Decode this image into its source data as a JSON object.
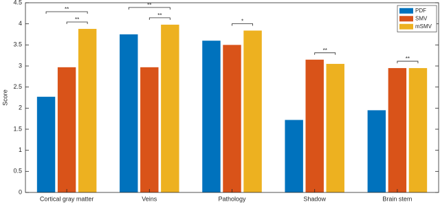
{
  "chart_data": {
    "type": "bar",
    "y_label": "Score",
    "categories": [
      "Cortical gray matter",
      "Veins",
      "Pathology",
      "Shadow",
      "Brain stem"
    ],
    "series": [
      {
        "name": "PDF",
        "color": "#0072bd",
        "values": [
          2.27,
          3.75,
          3.6,
          1.72,
          1.95
        ]
      },
      {
        "name": "SMV",
        "color": "#d95319",
        "values": [
          2.97,
          2.97,
          3.5,
          3.15,
          2.95
        ]
      },
      {
        "name": "mSMV",
        "color": "#edb120",
        "values": [
          3.88,
          3.98,
          3.84,
          3.05,
          2.95
        ]
      }
    ],
    "ylim": [
      0,
      4.5
    ],
    "yticks": [
      0,
      0.5,
      1,
      1.5,
      2,
      2.5,
      3,
      3.5,
      4,
      4.5
    ],
    "legend": "top-right",
    "annotations": [
      {
        "category": "Cortical gray matter",
        "between": [
          "PDF",
          "mSMV"
        ],
        "label": "**"
      },
      {
        "category": "Cortical gray matter",
        "between": [
          "SMV",
          "mSMV"
        ],
        "label": "**"
      },
      {
        "category": "Veins",
        "between": [
          "PDF",
          "mSMV"
        ],
        "label": "**"
      },
      {
        "category": "Veins",
        "between": [
          "SMV",
          "mSMV"
        ],
        "label": "**"
      },
      {
        "category": "Pathology",
        "between": [
          "SMV",
          "mSMV"
        ],
        "label": "*"
      },
      {
        "category": "Shadow",
        "between": [
          "SMV",
          "mSMV"
        ],
        "label": "**"
      },
      {
        "category": "Brain stem",
        "between": [
          "SMV",
          "mSMV"
        ],
        "label": "**"
      }
    ]
  }
}
